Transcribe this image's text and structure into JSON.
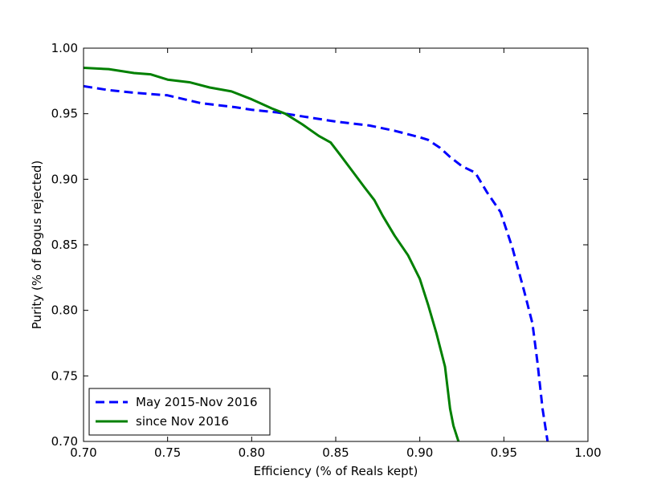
{
  "chart_data": {
    "type": "line",
    "title": "",
    "xlabel": "Efficiency (% of Reals kept)",
    "ylabel": "Purity (% of Bogus rejected)",
    "xlim": [
      0.7,
      1.0
    ],
    "ylim": [
      0.7,
      1.0
    ],
    "xticks": [
      "0.70",
      "0.75",
      "0.80",
      "0.85",
      "0.90",
      "0.95",
      "1.00"
    ],
    "yticks": [
      "0.70",
      "0.75",
      "0.80",
      "0.85",
      "0.90",
      "0.95",
      "1.00"
    ],
    "grid": false,
    "legend_position": "lower-left",
    "series": [
      {
        "name": "May 2015-Nov 2016",
        "color": "#0000ff",
        "style": "dashed",
        "x": [
          0.7,
          0.715,
          0.73,
          0.75,
          0.77,
          0.79,
          0.8,
          0.815,
          0.83,
          0.85,
          0.87,
          0.885,
          0.9,
          0.905,
          0.912,
          0.918,
          0.925,
          0.933,
          0.94,
          0.948,
          0.955,
          0.962,
          0.967,
          0.97,
          0.973,
          0.976
        ],
        "y": [
          0.971,
          0.968,
          0.966,
          0.964,
          0.958,
          0.955,
          0.953,
          0.951,
          0.948,
          0.944,
          0.941,
          0.937,
          0.932,
          0.93,
          0.924,
          0.917,
          0.91,
          0.905,
          0.89,
          0.875,
          0.848,
          0.815,
          0.79,
          0.76,
          0.725,
          0.7
        ]
      },
      {
        "name": "since Nov 2016",
        "color": "#008000",
        "style": "solid",
        "x": [
          0.7,
          0.715,
          0.73,
          0.74,
          0.75,
          0.763,
          0.775,
          0.788,
          0.8,
          0.812,
          0.82,
          0.83,
          0.84,
          0.847,
          0.853,
          0.86,
          0.867,
          0.873,
          0.878,
          0.885,
          0.893,
          0.9,
          0.905,
          0.91,
          0.915,
          0.918,
          0.92,
          0.923
        ],
        "y": [
          0.985,
          0.984,
          0.981,
          0.98,
          0.976,
          0.974,
          0.97,
          0.967,
          0.961,
          0.954,
          0.95,
          0.942,
          0.933,
          0.928,
          0.918,
          0.906,
          0.894,
          0.884,
          0.872,
          0.857,
          0.842,
          0.824,
          0.804,
          0.782,
          0.757,
          0.725,
          0.712,
          0.7
        ]
      }
    ]
  }
}
